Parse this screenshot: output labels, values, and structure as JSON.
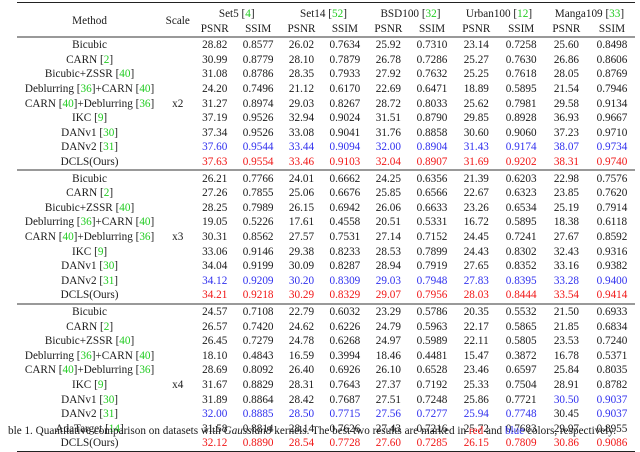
{
  "header": {
    "method_label": "Method",
    "scale_label": "Scale",
    "datasets": [
      {
        "name": "Set5",
        "ref": "4"
      },
      {
        "name": "Set14",
        "ref": "52"
      },
      {
        "name": "BSD100",
        "ref": "32"
      },
      {
        "name": "Urban100",
        "ref": "12"
      },
      {
        "name": "Manga109",
        "ref": "33"
      }
    ],
    "metric_psnr": "PSNR",
    "metric_ssim": "SSIM"
  },
  "colors": {
    "best": "#f01616",
    "second": "#3030ee",
    "citation": "#22cc22"
  },
  "groups": [
    {
      "scale": "x2",
      "rows": [
        {
          "method": "Bicubic",
          "refs": [],
          "values": [
            "28.82",
            "0.8577",
            "26.02",
            "0.7634",
            "25.92",
            "0.7310",
            "23.14",
            "0.7258",
            "25.60",
            "0.8498"
          ],
          "marks": [
            "",
            "",
            "",
            "",
            "",
            "",
            "",
            "",
            "",
            ""
          ]
        },
        {
          "method": "CARN",
          "refs": [
            "2"
          ],
          "values": [
            "30.99",
            "0.8779",
            "28.10",
            "0.7879",
            "26.78",
            "0.7286",
            "25.27",
            "0.7630",
            "26.86",
            "0.8606"
          ],
          "marks": [
            "",
            "",
            "",
            "",
            "",
            "",
            "",
            "",
            "",
            ""
          ]
        },
        {
          "method": "Bicubic+ZSSR",
          "refs": [
            "40"
          ],
          "values": [
            "31.08",
            "0.8786",
            "28.35",
            "0.7933",
            "27.92",
            "0.7632",
            "25.25",
            "0.7618",
            "28.05",
            "0.8769"
          ],
          "marks": [
            "",
            "",
            "",
            "",
            "",
            "",
            "",
            "",
            "",
            ""
          ]
        },
        {
          "method": "Deblurring [36]+CARN",
          "refs": [
            "36",
            "40"
          ],
          "values": [
            "24.20",
            "0.7496",
            "21.12",
            "0.6170",
            "22.69",
            "0.6471",
            "18.89",
            "0.5895",
            "21.54",
            "0.7946"
          ],
          "marks": [
            "",
            "",
            "",
            "",
            "",
            "",
            "",
            "",
            "",
            ""
          ]
        },
        {
          "method": "CARN [40]+Deblurring",
          "refs": [
            "40",
            "36"
          ],
          "values": [
            "31.27",
            "0.8974",
            "29.03",
            "0.8267",
            "28.72",
            "0.8033",
            "25.62",
            "0.7981",
            "29.58",
            "0.9134"
          ],
          "marks": [
            "",
            "",
            "",
            "",
            "",
            "",
            "",
            "",
            "",
            ""
          ]
        },
        {
          "method": "IKC",
          "refs": [
            "9"
          ],
          "values": [
            "37.19",
            "0.9526",
            "32.94",
            "0.9024",
            "31.51",
            "0.8790",
            "29.85",
            "0.8928",
            "36.93",
            "0.9667"
          ],
          "marks": [
            "",
            "",
            "",
            "",
            "",
            "",
            "",
            "",
            "",
            ""
          ]
        },
        {
          "method": "DANv1",
          "refs": [
            "30"
          ],
          "values": [
            "37.34",
            "0.9526",
            "33.08",
            "0.9041",
            "31.76",
            "0.8858",
            "30.60",
            "0.9060",
            "37.23",
            "0.9710"
          ],
          "marks": [
            "",
            "",
            "",
            "",
            "",
            "",
            "",
            "",
            "",
            ""
          ]
        },
        {
          "method": "DANv2",
          "refs": [
            "31"
          ],
          "values": [
            "37.60",
            "0.9544",
            "33.44",
            "0.9094",
            "32.00",
            "0.8904",
            "31.43",
            "0.9174",
            "38.07",
            "0.9734"
          ],
          "marks": [
            "blue",
            "blue",
            "blue",
            "blue",
            "blue",
            "blue",
            "blue",
            "blue",
            "blue",
            "blue"
          ]
        },
        {
          "method": "DCLS(Ours)",
          "refs": [],
          "values": [
            "37.63",
            "0.9554",
            "33.46",
            "0.9103",
            "32.04",
            "0.8907",
            "31.69",
            "0.9202",
            "38.31",
            "0.9740"
          ],
          "marks": [
            "red",
            "red",
            "red",
            "red",
            "red",
            "red",
            "red",
            "red",
            "red",
            "red"
          ]
        }
      ]
    },
    {
      "scale": "x3",
      "rows": [
        {
          "method": "Bicubic",
          "refs": [],
          "values": [
            "26.21",
            "0.7766",
            "24.01",
            "0.6662",
            "24.25",
            "0.6356",
            "21.39",
            "0.6203",
            "22.98",
            "0.7576"
          ],
          "marks": [
            "",
            "",
            "",
            "",
            "",
            "",
            "",
            "",
            "",
            ""
          ]
        },
        {
          "method": "CARN",
          "refs": [
            "2"
          ],
          "values": [
            "27.26",
            "0.7855",
            "25.06",
            "0.6676",
            "25.85",
            "0.6566",
            "22.67",
            "0.6323",
            "23.85",
            "0.7620"
          ],
          "marks": [
            "",
            "",
            "",
            "",
            "",
            "",
            "",
            "",
            "",
            ""
          ]
        },
        {
          "method": "Bicubic+ZSSR",
          "refs": [
            "40"
          ],
          "values": [
            "28.25",
            "0.7989",
            "26.15",
            "0.6942",
            "26.06",
            "0.6633",
            "23.26",
            "0.6534",
            "25.19",
            "0.7914"
          ],
          "marks": [
            "",
            "",
            "",
            "",
            "",
            "",
            "",
            "",
            "",
            ""
          ]
        },
        {
          "method": "Deblurring [36]+CARN",
          "refs": [
            "36",
            "40"
          ],
          "values": [
            "19.05",
            "0.5226",
            "17.61",
            "0.4558",
            "20.51",
            "0.5331",
            "16.72",
            "0.5895",
            "18.38",
            "0.6118"
          ],
          "marks": [
            "",
            "",
            "",
            "",
            "",
            "",
            "",
            "",
            "",
            ""
          ]
        },
        {
          "method": "CARN [40]+Deblurring",
          "refs": [
            "40",
            "36"
          ],
          "values": [
            "30.31",
            "0.8562",
            "27.57",
            "0.7531",
            "27.14",
            "0.7152",
            "24.45",
            "0.7241",
            "27.67",
            "0.8592"
          ],
          "marks": [
            "",
            "",
            "",
            "",
            "",
            "",
            "",
            "",
            "",
            ""
          ]
        },
        {
          "method": "IKC",
          "refs": [
            "9"
          ],
          "values": [
            "33.06",
            "0.9146",
            "29.38",
            "0.8233",
            "28.53",
            "0.7899",
            "24.43",
            "0.8302",
            "32.43",
            "0.9316"
          ],
          "marks": [
            "",
            "",
            "",
            "",
            "",
            "",
            "",
            "",
            "",
            ""
          ]
        },
        {
          "method": "DANv1",
          "refs": [
            "30"
          ],
          "values": [
            "34.04",
            "0.9199",
            "30.09",
            "0.8287",
            "28.94",
            "0.7919",
            "27.65",
            "0.8352",
            "33.16",
            "0.9382"
          ],
          "marks": [
            "",
            "",
            "",
            "",
            "",
            "",
            "",
            "",
            "",
            ""
          ]
        },
        {
          "method": "DANv2",
          "refs": [
            "31"
          ],
          "values": [
            "34.12",
            "0.9209",
            "30.20",
            "0.8309",
            "29.03",
            "0.7948",
            "27.83",
            "0.8395",
            "33.28",
            "0.9400"
          ],
          "marks": [
            "blue",
            "blue",
            "blue",
            "blue",
            "blue",
            "blue",
            "blue",
            "blue",
            "blue",
            "blue"
          ]
        },
        {
          "method": "DCLS(Ours)",
          "refs": [],
          "values": [
            "34.21",
            "0.9218",
            "30.29",
            "0.8329",
            "29.07",
            "0.7956",
            "28.03",
            "0.8444",
            "33.54",
            "0.9414"
          ],
          "marks": [
            "red",
            "red",
            "red",
            "red",
            "red",
            "red",
            "red",
            "red",
            "red",
            "red"
          ]
        }
      ]
    },
    {
      "scale": "x4",
      "rows": [
        {
          "method": "Bicubic",
          "refs": [],
          "values": [
            "24.57",
            "0.7108",
            "22.79",
            "0.6032",
            "23.29",
            "0.5786",
            "20.35",
            "0.5532",
            "21.50",
            "0.6933"
          ],
          "marks": [
            "",
            "",
            "",
            "",
            "",
            "",
            "",
            "",
            "",
            ""
          ]
        },
        {
          "method": "CARN",
          "refs": [
            "2"
          ],
          "values": [
            "26.57",
            "0.7420",
            "24.62",
            "0.6226",
            "24.79",
            "0.5963",
            "22.17",
            "0.5865",
            "21.85",
            "0.6834"
          ],
          "marks": [
            "",
            "",
            "",
            "",
            "",
            "",
            "",
            "",
            "",
            ""
          ]
        },
        {
          "method": "Bicubic+ZSSR",
          "refs": [
            "40"
          ],
          "values": [
            "26.45",
            "0.7279",
            "24.78",
            "0.6268",
            "24.97",
            "0.5989",
            "22.11",
            "0.5805",
            "23.53",
            "0.7240"
          ],
          "marks": [
            "",
            "",
            "",
            "",
            "",
            "",
            "",
            "",
            "",
            ""
          ]
        },
        {
          "method": "Deblurring [36]+CARN",
          "refs": [
            "36",
            "40"
          ],
          "values": [
            "18.10",
            "0.4843",
            "16.59",
            "0.3994",
            "18.46",
            "0.4481",
            "15.47",
            "0.3872",
            "16.78",
            "0.5371"
          ],
          "marks": [
            "",
            "",
            "",
            "",
            "",
            "",
            "",
            "",
            "",
            ""
          ]
        },
        {
          "method": "CARN [40]+Deblurring",
          "refs": [
            "40",
            "36"
          ],
          "values": [
            "28.69",
            "0.8092",
            "26.40",
            "0.6926",
            "26.10",
            "0.6528",
            "23.46",
            "0.6597",
            "25.84",
            "0.8035"
          ],
          "marks": [
            "",
            "",
            "",
            "",
            "",
            "",
            "",
            "",
            "",
            ""
          ]
        },
        {
          "method": "IKC",
          "refs": [
            "9"
          ],
          "values": [
            "31.67",
            "0.8829",
            "28.31",
            "0.7643",
            "27.37",
            "0.7192",
            "25.33",
            "0.7504",
            "28.91",
            "0.8782"
          ],
          "marks": [
            "",
            "",
            "",
            "",
            "",
            "",
            "",
            "",
            "",
            ""
          ]
        },
        {
          "method": "DANv1",
          "refs": [
            "30"
          ],
          "values": [
            "31.89",
            "0.8864",
            "28.42",
            "0.7687",
            "27.51",
            "0.7248",
            "25.86",
            "0.7721",
            "30.50",
            "0.9037"
          ],
          "marks": [
            "",
            "",
            "",
            "",
            "",
            "",
            "",
            "",
            "blue",
            "blue"
          ]
        },
        {
          "method": "DANv2",
          "refs": [
            "31"
          ],
          "values": [
            "32.00",
            "0.8885",
            "28.50",
            "0.7715",
            "27.56",
            "0.7277",
            "25.94",
            "0.7748",
            "30.45",
            "0.9037"
          ],
          "marks": [
            "blue",
            "blue",
            "blue",
            "blue",
            "blue",
            "blue",
            "blue",
            "blue",
            "",
            "blue"
          ]
        },
        {
          "method": "AdaTarget",
          "refs": [
            "14"
          ],
          "values": [
            "31.58",
            "0.8814",
            "28.14",
            "0.7626",
            "27.43",
            "0.7216",
            "25.72",
            "0.7683",
            "29.97",
            "0.8955"
          ],
          "marks": [
            "",
            "",
            "",
            "",
            "",
            "",
            "",
            "",
            "",
            ""
          ]
        },
        {
          "method": "DCLS(Ours)",
          "refs": [],
          "values": [
            "32.12",
            "0.8890",
            "28.54",
            "0.7728",
            "27.60",
            "0.7285",
            "26.15",
            "0.7809",
            "30.86",
            "0.9086"
          ],
          "marks": [
            "red",
            "red",
            "red",
            "red",
            "red",
            "red",
            "red",
            "red",
            "red",
            "red"
          ]
        }
      ]
    }
  ],
  "caption": {
    "prefix": "ble 1. Quantitative comparison on datasets with ",
    "kernel": "Gaussian8",
    "middle": " kernels. The best two results are marked in ",
    "red_word": "red",
    "and_word": " and ",
    "blue_word": "blue",
    "suffix": " colors, respectively."
  }
}
